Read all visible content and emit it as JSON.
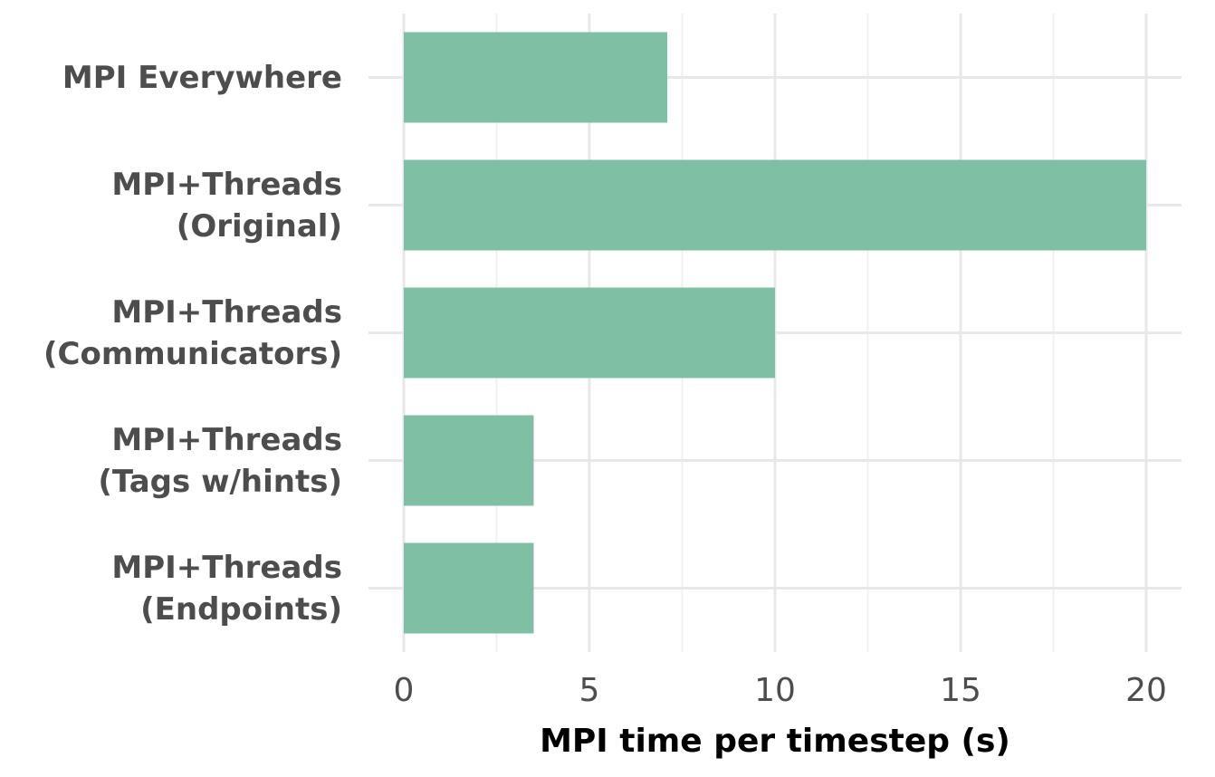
{
  "chart_data": {
    "type": "bar",
    "orientation": "horizontal",
    "categories": [
      "MPI Everywhere",
      "MPI+Threads\n(Original)",
      "MPI+Threads\n(Communicators)",
      "MPI+Threads\n(Tags w/hints)",
      "MPI+Threads\n(Endpoints)"
    ],
    "values": [
      7.1,
      20,
      10,
      3.5,
      3.5
    ],
    "color": "#7fc0a5",
    "x_label": "MPI time per timestep (s)",
    "xlim": [
      -0.95,
      20.95
    ],
    "xticks": [
      0,
      5,
      10,
      15,
      20
    ],
    "minor_xticks": [
      2.5,
      7.5,
      12.5,
      17.5
    ],
    "grid": true
  }
}
